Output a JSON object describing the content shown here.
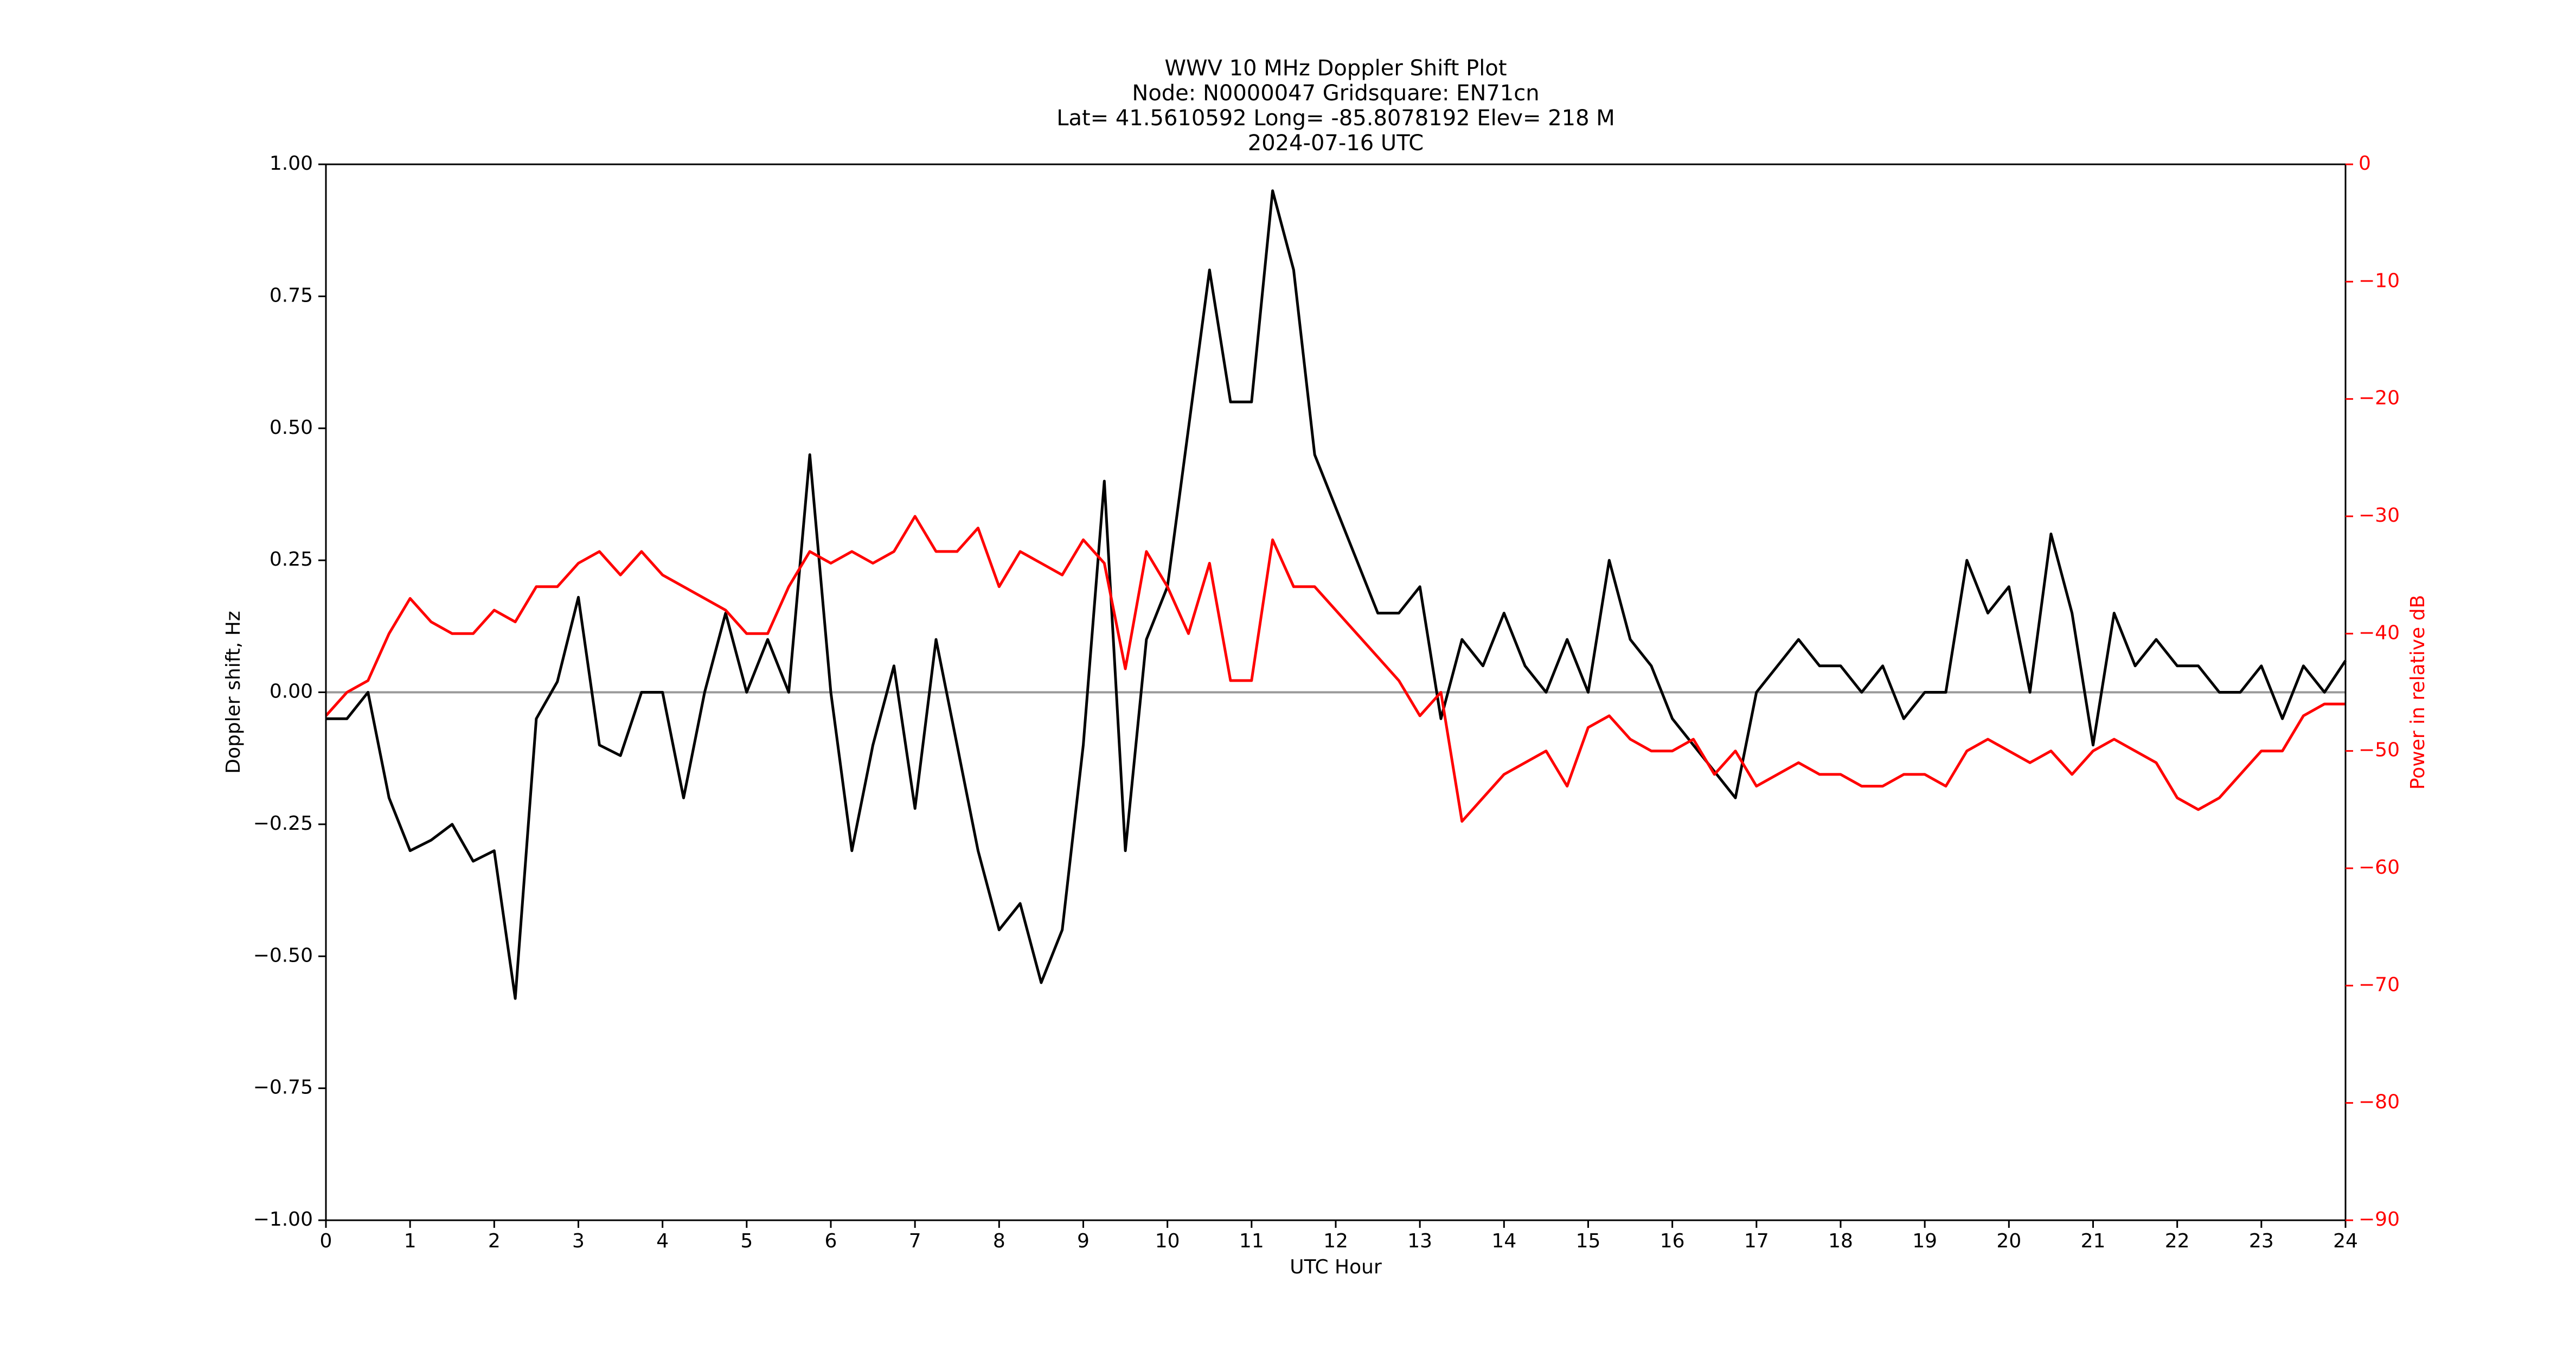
{
  "chart_data": {
    "type": "line",
    "title_lines": [
      "WWV 10 MHz Doppler Shift Plot",
      "Node:  N0000047     Gridsquare:  EN71cn",
      "Lat= 41.5610592    Long= -85.8078192    Elev= 218 M",
      "2024-07-16  UTC"
    ],
    "x_label": "UTC Hour",
    "y_label": "Doppler shift, Hz",
    "y2_label": "Power in relative dB",
    "x": [
      0,
      0.25,
      0.5,
      0.75,
      1,
      1.25,
      1.5,
      1.75,
      2,
      2.25,
      2.5,
      2.75,
      3,
      3.25,
      3.5,
      3.75,
      4,
      4.25,
      4.5,
      4.75,
      5,
      5.25,
      5.5,
      5.75,
      6,
      6.25,
      6.5,
      6.75,
      7,
      7.25,
      7.5,
      7.75,
      8,
      8.25,
      8.5,
      8.75,
      9,
      9.25,
      9.5,
      9.75,
      10,
      10.25,
      10.5,
      10.75,
      11,
      11.25,
      11.5,
      11.75,
      12,
      12.25,
      12.5,
      12.75,
      13,
      13.25,
      13.5,
      13.75,
      14,
      14.25,
      14.5,
      14.75,
      15,
      15.25,
      15.5,
      15.75,
      16,
      16.25,
      16.5,
      16.75,
      17,
      17.25,
      17.5,
      17.75,
      18,
      18.25,
      18.5,
      18.75,
      19,
      19.25,
      19.5,
      19.75,
      20,
      20.25,
      20.5,
      20.75,
      21,
      21.25,
      21.5,
      21.75,
      22,
      22.25,
      22.5,
      22.75,
      23,
      23.25,
      23.5,
      23.75,
      24
    ],
    "series": [
      {
        "name": "Doppler shift",
        "color": "#000000",
        "axis": "y",
        "values": [
          -0.05,
          -0.05,
          0.0,
          -0.2,
          -0.3,
          -0.28,
          -0.25,
          -0.32,
          -0.3,
          -0.58,
          -0.05,
          0.02,
          0.18,
          -0.1,
          -0.12,
          0.0,
          0.0,
          -0.2,
          0.0,
          0.15,
          0.0,
          0.1,
          0.0,
          0.45,
          0.0,
          -0.3,
          -0.1,
          0.05,
          -0.22,
          0.1,
          -0.1,
          -0.3,
          -0.45,
          -0.4,
          -0.55,
          -0.45,
          -0.1,
          0.4,
          -0.3,
          0.1,
          0.2,
          0.5,
          0.8,
          0.55,
          0.55,
          0.95,
          0.8,
          0.45,
          0.35,
          0.25,
          0.15,
          0.15,
          0.2,
          -0.05,
          0.1,
          0.05,
          0.15,
          0.05,
          0.0,
          0.1,
          0.0,
          0.25,
          0.1,
          0.05,
          -0.05,
          -0.1,
          -0.15,
          -0.2,
          0.0,
          0.05,
          0.1,
          0.05,
          0.05,
          0.0,
          0.05,
          -0.05,
          0.0,
          0.0,
          0.25,
          0.15,
          0.2,
          0.0,
          0.3,
          0.15,
          -0.1,
          0.15,
          0.05,
          0.1,
          0.05,
          0.05,
          0.0,
          0.0,
          0.05,
          -0.05,
          0.05,
          0.0,
          0.06
        ]
      },
      {
        "name": "Power",
        "color": "#ff0000",
        "axis": "y2",
        "values": [
          -47,
          -45,
          -44,
          -40,
          -37,
          -39,
          -40,
          -40,
          -38,
          -39,
          -36,
          -36,
          -34,
          -33,
          -35,
          -33,
          -35,
          -36,
          -37,
          -38,
          -40,
          -40,
          -36,
          -33,
          -34,
          -33,
          -34,
          -33,
          -30,
          -33,
          -33,
          -31,
          -36,
          -33,
          -34,
          -35,
          -32,
          -34,
          -43,
          -33,
          -36,
          -40,
          -34,
          -44,
          -44,
          -32,
          -36,
          -36,
          -38,
          -40,
          -42,
          -44,
          -47,
          -45,
          -56,
          -54,
          -52,
          -51,
          -50,
          -53,
          -48,
          -47,
          -49,
          -50,
          -50,
          -49,
          -52,
          -50,
          -53,
          -52,
          -51,
          -52,
          -52,
          -53,
          -53,
          -52,
          -52,
          -53,
          -50,
          -49,
          -50,
          -51,
          -50,
          -52,
          -50,
          -49,
          -50,
          -51,
          -54,
          -55,
          -54,
          -52,
          -50,
          -50,
          -47,
          -46,
          -46
        ]
      }
    ],
    "xlim": [
      0,
      24
    ],
    "xticks": [
      0,
      1,
      2,
      3,
      4,
      5,
      6,
      7,
      8,
      9,
      10,
      11,
      12,
      13,
      14,
      15,
      16,
      17,
      18,
      19,
      20,
      21,
      22,
      23,
      24
    ],
    "ylim": [
      -1,
      1
    ],
    "yticks": [
      {
        "value": -1,
        "label": "−1.00"
      },
      {
        "value": -0.75,
        "label": "−0.75"
      },
      {
        "value": -0.5,
        "label": "−0.50"
      },
      {
        "value": -0.25,
        "label": "−0.25"
      },
      {
        "value": 0,
        "label": "0.00"
      },
      {
        "value": 0.25,
        "label": "0.25"
      },
      {
        "value": 0.5,
        "label": "0.50"
      },
      {
        "value": 0.75,
        "label": "0.75"
      },
      {
        "value": 1,
        "label": "1.00"
      }
    ],
    "y2lim": [
      -90,
      0
    ],
    "y2ticks": [
      {
        "value": -90,
        "label": "−90"
      },
      {
        "value": -80,
        "label": "−80"
      },
      {
        "value": -70,
        "label": "−70"
      },
      {
        "value": -60,
        "label": "−60"
      },
      {
        "value": -50,
        "label": "−50"
      },
      {
        "value": -40,
        "label": "−40"
      },
      {
        "value": -30,
        "label": "−30"
      },
      {
        "value": -20,
        "label": "−20"
      },
      {
        "value": -10,
        "label": "−10"
      },
      0
    ],
    "y2_color": "#ff0000",
    "zero_line_color": "#999999"
  }
}
